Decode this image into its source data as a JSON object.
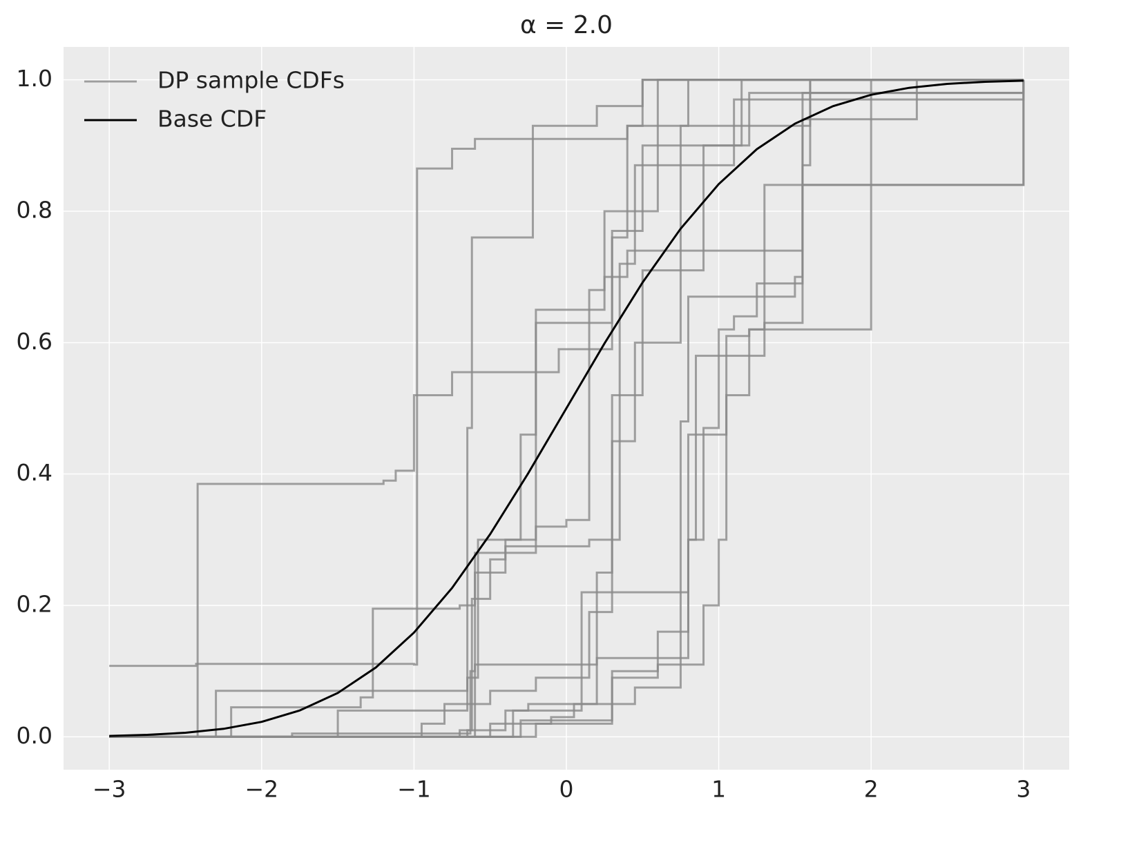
{
  "chart_data": {
    "type": "line",
    "title": "α = 2.0",
    "xlim": [
      -3.3,
      3.3
    ],
    "ylim": [
      -0.05,
      1.05
    ],
    "xticks": [
      {
        "value": -3,
        "label": "−3"
      },
      {
        "value": -2,
        "label": "−2"
      },
      {
        "value": -1,
        "label": "−1"
      },
      0,
      1,
      2,
      3
    ],
    "yticks": [
      {
        "value": 0,
        "label": "0.0"
      },
      {
        "value": 0.2,
        "label": "0.2"
      },
      {
        "value": 0.4,
        "label": "0.4"
      },
      {
        "value": 0.6,
        "label": "0.6"
      },
      {
        "value": 0.8,
        "label": "0.8"
      },
      {
        "value": 1,
        "label": "1.0"
      }
    ],
    "grid": true,
    "legend": "upper left",
    "series": [
      {
        "name": "DP sample CDFs",
        "color": "#8a8a8a",
        "drawstyle": "steps-post",
        "lines": [
          {
            "x": [
              -3,
              -2.43,
              -1.0,
              -0.98,
              -0.75,
              -0.6,
              0.4,
              0.5,
              3
            ],
            "values": [
              0.108,
              0.111,
              0.11,
              0.865,
              0.895,
              0.91,
              0.93,
              1.0,
              1.0
            ]
          },
          {
            "x": [
              -3,
              -2.42,
              -1.2,
              -1.12,
              -1.0,
              -0.75,
              -0.05,
              0.3,
              0.4,
              1.6,
              3
            ],
            "values": [
              0,
              0.385,
              0.39,
              0.405,
              0.52,
              0.555,
              0.59,
              0.76,
              0.93,
              1.0,
              1.0
            ]
          },
          {
            "x": [
              -3,
              -2.3,
              -1.3,
              -0.65,
              -0.62,
              -0.55,
              -0.3,
              -0.22,
              0.2,
              0.5,
              3
            ],
            "values": [
              0,
              0.07,
              0.07,
              0.47,
              0.76,
              0.76,
              0.76,
              0.93,
              0.96,
              1.0,
              1.0
            ]
          },
          {
            "x": [
              -3,
              -2.2,
              -1.35,
              -1.27,
              -0.7,
              -0.6,
              -0.35,
              -0.2,
              0.0,
              0.25,
              0.6,
              3
            ],
            "values": [
              0,
              0.045,
              0.06,
              0.195,
              0.2,
              0.28,
              0.28,
              0.65,
              0.65,
              0.8,
              1.0,
              1.0
            ]
          },
          {
            "x": [
              -3,
              -2.0,
              -0.65,
              -0.62,
              -0.5,
              -0.4,
              0.15,
              0.35,
              0.45,
              1.1,
              3
            ],
            "values": [
              0,
              0,
              0.01,
              0.21,
              0.27,
              0.29,
              0.3,
              0.72,
              0.87,
              0.97,
              1.0
            ]
          },
          {
            "x": [
              -3,
              -1.8,
              -0.63,
              -0.6,
              -0.4,
              -0.3,
              -0.2,
              0.3,
              0.5,
              1.2,
              3
            ],
            "values": [
              0,
              0.005,
              0.1,
              0.25,
              0.3,
              0.46,
              0.63,
              0.77,
              0.9,
              0.98,
              1.0
            ]
          },
          {
            "x": [
              -3,
              -1.5,
              -0.65,
              -0.58,
              -0.2,
              0.0,
              0.15,
              0.25,
              0.4,
              1.55,
              3
            ],
            "values": [
              0,
              0.04,
              0.09,
              0.3,
              0.32,
              0.33,
              0.68,
              0.7,
              0.74,
              0.98,
              1.0
            ]
          },
          {
            "x": [
              -3,
              -0.95,
              -0.8,
              -0.5,
              -0.2,
              0.15,
              0.3,
              0.45,
              0.75,
              0.8,
              3
            ],
            "values": [
              0,
              0.02,
              0.05,
              0.07,
              0.09,
              0.19,
              0.45,
              0.6,
              0.93,
              1.0,
              1.0
            ]
          },
          {
            "x": [
              -3,
              -0.7,
              -0.4,
              -0.25,
              0.0,
              0.2,
              0.3,
              0.5,
              0.9,
              1.15,
              3
            ],
            "values": [
              0,
              0.01,
              0.04,
              0.05,
              0.05,
              0.25,
              0.52,
              0.71,
              0.9,
              1.0,
              1.0
            ]
          },
          {
            "x": [
              -3,
              -0.5,
              -0.1,
              0.05,
              0.45,
              0.75,
              0.8,
              1.05,
              1.2,
              1.3,
              3
            ],
            "values": [
              0,
              0.02,
              0.03,
              0.05,
              0.075,
              0.12,
              0.46,
              0.52,
              0.62,
              0.84,
              1.0
            ]
          },
          {
            "x": [
              -3,
              -0.3,
              0.3,
              0.6,
              0.8,
              0.85,
              1.0,
              1.1,
              1.25,
              1.55,
              3
            ],
            "values": [
              0,
              0.025,
              0.09,
              0.16,
              0.3,
              0.58,
              0.62,
              0.64,
              0.69,
              0.84,
              1.0
            ]
          },
          {
            "x": [
              -3,
              -0.2,
              0.3,
              0.6,
              0.9,
              1.0,
              1.05,
              1.2,
              1.6,
              2.0,
              3
            ],
            "values": [
              0,
              0.02,
              0.1,
              0.11,
              0.2,
              0.3,
              0.61,
              0.62,
              0.62,
              1.0,
              1.0
            ]
          },
          {
            "x": [
              -3,
              -0.6,
              0.2,
              0.65,
              0.75,
              0.8,
              1.5,
              1.55,
              2.2,
              2.3,
              3
            ],
            "values": [
              0,
              0.11,
              0.12,
              0.12,
              0.48,
              0.67,
              0.7,
              0.94,
              0.94,
              1.0,
              1.0
            ]
          },
          {
            "x": [
              -3,
              -0.35,
              0.1,
              0.8,
              0.9,
              1.0,
              1.3,
              1.55,
              1.6,
              3
            ],
            "values": [
              0,
              0.04,
              0.22,
              0.3,
              0.47,
              0.58,
              0.63,
              0.87,
              1.0,
              1.0
            ]
          }
        ]
      },
      {
        "name": "Base CDF",
        "color": "#000000",
        "x": [
          -3,
          -2.75,
          -2.5,
          -2.25,
          -2,
          -1.75,
          -1.5,
          -1.25,
          -1,
          -0.75,
          -0.5,
          -0.25,
          0,
          0.25,
          0.5,
          0.75,
          1,
          1.25,
          1.5,
          1.75,
          2,
          2.25,
          2.5,
          2.75,
          3
        ],
        "values": [
          0.0013,
          0.003,
          0.0062,
          0.0122,
          0.0228,
          0.0401,
          0.0668,
          0.1056,
          0.1587,
          0.2266,
          0.3085,
          0.4013,
          0.5,
          0.5987,
          0.6915,
          0.7734,
          0.8413,
          0.8944,
          0.9332,
          0.9599,
          0.9772,
          0.9878,
          0.9938,
          0.997,
          0.9987
        ]
      }
    ]
  }
}
